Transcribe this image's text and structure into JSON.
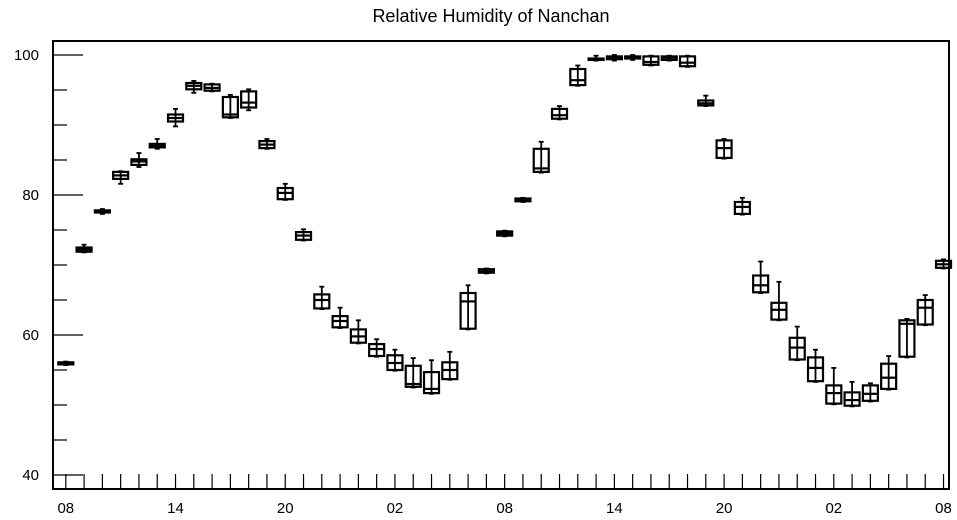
{
  "chart_data": {
    "type": "box",
    "title": "Relative Humidity of Nanchan",
    "xlabel": "",
    "ylabel": "",
    "ylim": [
      38,
      102
    ],
    "xlim": [
      -0.7,
      48.3
    ],
    "y_ticks": [
      40,
      60,
      80,
      100
    ],
    "x_ticks": [
      {
        "x": 0,
        "label": "08"
      },
      {
        "x": 6,
        "label": "14"
      },
      {
        "x": 12,
        "label": "20"
      },
      {
        "x": 18,
        "label": "02"
      },
      {
        "x": 24,
        "label": "08"
      },
      {
        "x": 30,
        "label": "14"
      },
      {
        "x": 36,
        "label": "20"
      },
      {
        "x": 42,
        "label": "02"
      },
      {
        "x": 48,
        "label": "08"
      }
    ],
    "grid": false,
    "boxes": [
      {
        "x": 0,
        "low": 55.7,
        "q1": 55.8,
        "median": 55.9,
        "q3": 56.1,
        "high": 56.2
      },
      {
        "x": 1,
        "low": 71.8,
        "q1": 71.9,
        "median": 72.2,
        "q3": 72.5,
        "high": 72.9
      },
      {
        "x": 2,
        "low": 77.3,
        "q1": 77.5,
        "median": 77.7,
        "q3": 77.8,
        "high": 78.0
      },
      {
        "x": 3,
        "low": 81.6,
        "q1": 82.3,
        "median": 82.8,
        "q3": 83.3,
        "high": 83.4
      },
      {
        "x": 4,
        "low": 84.0,
        "q1": 84.3,
        "median": 84.8,
        "q3": 85.1,
        "high": 86.0
      },
      {
        "x": 5,
        "low": 86.6,
        "q1": 86.8,
        "median": 87.0,
        "q3": 87.3,
        "high": 88.0
      },
      {
        "x": 6,
        "low": 89.8,
        "q1": 90.5,
        "median": 91.0,
        "q3": 91.5,
        "high": 92.3
      },
      {
        "x": 7,
        "low": 94.6,
        "q1": 95.1,
        "median": 95.6,
        "q3": 96.0,
        "high": 96.3
      },
      {
        "x": 8,
        "low": 94.8,
        "q1": 94.9,
        "median": 95.3,
        "q3": 95.8,
        "high": 95.9
      },
      {
        "x": 9,
        "low": 91.0,
        "q1": 91.1,
        "median": 91.5,
        "q3": 94.0,
        "high": 94.3
      },
      {
        "x": 10,
        "low": 92.1,
        "q1": 92.5,
        "median": 93.2,
        "q3": 94.8,
        "high": 95.1
      },
      {
        "x": 11,
        "low": 86.6,
        "q1": 86.7,
        "median": 87.2,
        "q3": 87.7,
        "high": 88.0
      },
      {
        "x": 12,
        "low": 79.3,
        "q1": 79.4,
        "median": 80.3,
        "q3": 81.0,
        "high": 81.6
      },
      {
        "x": 13,
        "low": 73.5,
        "q1": 73.6,
        "median": 74.2,
        "q3": 74.7,
        "high": 75.1
      },
      {
        "x": 14,
        "low": 63.7,
        "q1": 63.8,
        "median": 65.0,
        "q3": 65.8,
        "high": 66.9
      },
      {
        "x": 15,
        "low": 61.0,
        "q1": 61.1,
        "median": 62.0,
        "q3": 62.7,
        "high": 63.9
      },
      {
        "x": 16,
        "low": 58.8,
        "q1": 58.9,
        "median": 59.8,
        "q3": 60.8,
        "high": 62.1
      },
      {
        "x": 17,
        "low": 56.9,
        "q1": 57.0,
        "median": 58.0,
        "q3": 58.7,
        "high": 59.4
      },
      {
        "x": 18,
        "low": 54.9,
        "q1": 55.0,
        "median": 56.0,
        "q3": 57.1,
        "high": 57.9
      },
      {
        "x": 19,
        "low": 52.5,
        "q1": 52.6,
        "median": 53.0,
        "q3": 55.6,
        "high": 56.7
      },
      {
        "x": 20,
        "low": 51.6,
        "q1": 51.7,
        "median": 52.3,
        "q3": 54.7,
        "high": 56.4
      },
      {
        "x": 21,
        "low": 53.6,
        "q1": 53.7,
        "median": 55.0,
        "q3": 56.1,
        "high": 57.6
      },
      {
        "x": 22,
        "low": 60.8,
        "q1": 60.9,
        "median": 64.8,
        "q3": 66.0,
        "high": 67.1
      },
      {
        "x": 23,
        "low": 68.8,
        "q1": 68.9,
        "median": 69.1,
        "q3": 69.4,
        "high": 69.5
      },
      {
        "x": 24,
        "low": 74.1,
        "q1": 74.2,
        "median": 74.5,
        "q3": 74.8,
        "high": 74.9
      },
      {
        "x": 25,
        "low": 79.0,
        "q1": 79.1,
        "median": 79.2,
        "q3": 79.5,
        "high": 79.6
      },
      {
        "x": 26,
        "low": 83.2,
        "q1": 83.3,
        "median": 83.8,
        "q3": 86.6,
        "high": 87.6
      },
      {
        "x": 27,
        "low": 90.8,
        "q1": 90.9,
        "median": 91.4,
        "q3": 92.3,
        "high": 92.7
      },
      {
        "x": 28,
        "low": 95.6,
        "q1": 95.7,
        "median": 96.4,
        "q3": 98.0,
        "high": 98.5
      },
      {
        "x": 29,
        "low": 99.2,
        "q1": 99.3,
        "median": 99.4,
        "q3": 99.5,
        "high": 99.9
      },
      {
        "x": 30,
        "low": 99.2,
        "q1": 99.4,
        "median": 99.6,
        "q3": 99.8,
        "high": 100.0
      },
      {
        "x": 31,
        "low": 99.3,
        "q1": 99.5,
        "median": 99.7,
        "q3": 99.8,
        "high": 100.0
      },
      {
        "x": 32,
        "low": 98.5,
        "q1": 98.6,
        "median": 99.0,
        "q3": 99.8,
        "high": 99.9
      },
      {
        "x": 33,
        "low": 99.2,
        "q1": 99.3,
        "median": 99.6,
        "q3": 99.8,
        "high": 99.9
      },
      {
        "x": 34,
        "low": 98.3,
        "q1": 98.4,
        "median": 98.9,
        "q3": 99.8,
        "high": 99.9
      },
      {
        "x": 35,
        "low": 92.7,
        "q1": 92.8,
        "median": 93.1,
        "q3": 93.5,
        "high": 94.2
      },
      {
        "x": 36,
        "low": 85.2,
        "q1": 85.3,
        "median": 86.7,
        "q3": 87.8,
        "high": 88.0
      },
      {
        "x": 37,
        "low": 77.2,
        "q1": 77.3,
        "median": 78.3,
        "q3": 79.0,
        "high": 79.6
      },
      {
        "x": 38,
        "low": 66.0,
        "q1": 66.1,
        "median": 67.1,
        "q3": 68.5,
        "high": 70.5
      },
      {
        "x": 39,
        "low": 62.1,
        "q1": 62.2,
        "median": 63.6,
        "q3": 64.6,
        "high": 67.6
      },
      {
        "x": 40,
        "low": 56.4,
        "q1": 56.5,
        "median": 58.2,
        "q3": 59.6,
        "high": 61.2
      },
      {
        "x": 41,
        "low": 53.3,
        "q1": 53.4,
        "median": 55.3,
        "q3": 56.8,
        "high": 57.9
      },
      {
        "x": 42,
        "low": 50.1,
        "q1": 50.2,
        "median": 51.7,
        "q3": 52.8,
        "high": 55.3
      },
      {
        "x": 43,
        "low": 49.8,
        "q1": 49.9,
        "median": 50.7,
        "q3": 51.8,
        "high": 53.3
      },
      {
        "x": 44,
        "low": 50.5,
        "q1": 50.6,
        "median": 51.6,
        "q3": 52.8,
        "high": 53.1
      },
      {
        "x": 45,
        "low": 52.2,
        "q1": 52.3,
        "median": 53.9,
        "q3": 55.9,
        "high": 57.0
      },
      {
        "x": 46,
        "low": 56.8,
        "q1": 56.9,
        "median": 61.6,
        "q3": 62.1,
        "high": 62.3
      },
      {
        "x": 47,
        "low": 61.4,
        "q1": 61.5,
        "median": 63.9,
        "q3": 65.0,
        "high": 65.7
      },
      {
        "x": 48,
        "low": 69.5,
        "q1": 69.6,
        "median": 70.1,
        "q3": 70.6,
        "high": 70.8
      }
    ]
  }
}
